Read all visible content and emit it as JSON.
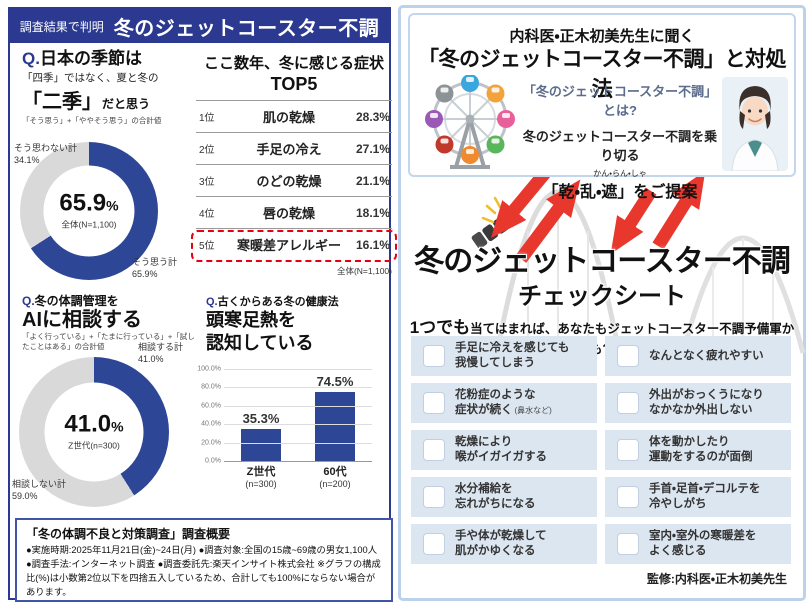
{
  "colors": {
    "header_blue": "#2b3990",
    "chart_blue": "#2e4696",
    "chart_gray": "#d9d9d9",
    "highlight_red": "#e60012",
    "arrow_red": "#e8382d",
    "checkbox_bg": "#dce6f1",
    "panel_border": "#bcd2ea"
  },
  "left_panel": {
    "header": {
      "badge": "調査結果で判明",
      "title": "冬のジェットコースター不調"
    },
    "q_season": {
      "q": "Q.",
      "title": "日本の季節は",
      "line2": "「四季」ではなく、夏と冬の",
      "big": "「二季」",
      "big_suffix": "だと思う",
      "note": "「そう思う」+「ややそう思う」の合計値",
      "donut_center_value": "65.9",
      "donut_center_unit": "%",
      "donut_center_sub": "全体(N=1,100)",
      "label_negative": "そう思わない計\n34.1%",
      "label_positive": "そう思う計\n65.9%"
    },
    "top5": {
      "title": "ここ数年、冬に感じる症状",
      "subtitle": "TOP5",
      "rows": [
        {
          "rank": "1位",
          "label": "肌の乾燥",
          "value": "28.3%"
        },
        {
          "rank": "2位",
          "label": "手足の冷え",
          "value": "27.1%"
        },
        {
          "rank": "3位",
          "label": "のどの乾燥",
          "value": "21.1%"
        },
        {
          "rank": "4位",
          "label": "唇の乾燥",
          "value": "18.1%"
        },
        {
          "rank": "5位",
          "label": "寒暖差アレルギー",
          "value": "16.1%",
          "highlight": true
        }
      ],
      "footnote": "全体(N=1,100)"
    },
    "q_ai": {
      "q": "Q.",
      "title_small": "冬の体調管理を",
      "title": "AIに相談する",
      "note": "「よく行っている」+「たまに行っている」+「試したことはある」の合計値",
      "donut_center_value": "41.0",
      "donut_center_unit": "%",
      "donut_center_sub": "Z世代(n=300)",
      "label_positive": "相談する計\n41.0%",
      "label_negative": "相談しない計\n59.0%"
    },
    "q_health": {
      "q": "Q.",
      "q_line": "古くからある冬の健康法",
      "title1": "頭寒足熱を",
      "title2": "認知している"
    },
    "overview": {
      "title": "「冬の体調不良と対策調査」調査概要",
      "body": "●実施時期:2025年11月21日(金)~24日(月) ●調査対象:全国の15歳~69歳の男女1,100人 ●調査手法:インターネット調査 ●調査委託先:楽天インサイト株式会社 ※グラフの構成比(%)は小数第2位以下を四捨五入しているため、合計しても100%にならない場合があります。"
    }
  },
  "right_panel": {
    "heading_small": "内科医・正木初美先生に聞く",
    "heading_large": "「冬のジェットコースター不調」と対処法",
    "intro_line1": "「冬のジェットコースター不調」とは?",
    "intro_line2": "冬のジェットコースター不調を乗り切る",
    "furigana": "かん・らん・しゃ",
    "intro_line3": "「乾・乱・遮」をご提案",
    "main_title": "冬のジェットコースター不調",
    "main_subtitle": "チェックシート",
    "lead_strong": "1つでも",
    "lead_rest": "当てはまれば、あなたもジェットコースター不調予備軍かも?!",
    "checklist_left": [
      {
        "text": "手足に冷えを感じても\n我慢してしまう"
      },
      {
        "text": "花粉症のような\n症状が続く",
        "note": "(鼻水など)"
      },
      {
        "text": "乾燥により\n喉がイガイガする"
      },
      {
        "text": "水分補給を\n忘れがちになる"
      },
      {
        "text": "手や体が乾燥して\n肌がかゆくなる"
      }
    ],
    "checklist_right": [
      {
        "text": "なんとなく疲れやすい"
      },
      {
        "text": "外出がおっくうになり\nなかなか外出しない"
      },
      {
        "text": "体を動かしたり\n運動をするのが面倒"
      },
      {
        "text": "手首・足首・デコルテを\n冷やしがち"
      },
      {
        "text": "室内・室外の寒暖差を\nよく感じる"
      }
    ],
    "supervisor": "監修:内科医・正木初美先生"
  },
  "chart_data": [
    {
      "type": "pie",
      "title": "日本の季節は「四季」ではなく、夏と冬の「二季」だと思う",
      "labels": [
        "そう思う計",
        "そう思わない計"
      ],
      "values": [
        65.9,
        34.1
      ],
      "center_label": "65.9%",
      "sample": "全体(N=1,100)",
      "colors": [
        "#2e4696",
        "#d9d9d9"
      ]
    },
    {
      "type": "table",
      "title": "ここ数年、冬に感じる症状TOP5",
      "columns": [
        "順位",
        "症状",
        "割合"
      ],
      "rows": [
        [
          "1位",
          "肌の乾燥",
          "28.3%"
        ],
        [
          "2位",
          "手足の冷え",
          "27.1%"
        ],
        [
          "3位",
          "のどの乾燥",
          "21.1%"
        ],
        [
          "4位",
          "唇の乾燥",
          "18.1%"
        ],
        [
          "5位",
          "寒暖差アレルギー",
          "16.1%"
        ]
      ],
      "highlighted_row": "5位 寒暖差アレルギー 16.1%",
      "sample": "全体(N=1,100)"
    },
    {
      "type": "pie",
      "title": "冬の体調管理をAIに相談する",
      "labels": [
        "相談する計",
        "相談しない計"
      ],
      "values": [
        41.0,
        59.0
      ],
      "center_label": "41.0%",
      "sample": "Z世代(n=300)",
      "colors": [
        "#2e4696",
        "#d9d9d9"
      ]
    },
    {
      "type": "bar",
      "title": "頭寒足熱を認知している",
      "categories": [
        "Z世代",
        "60代"
      ],
      "samples": [
        "(n=300)",
        "(n=200)"
      ],
      "values": [
        35.3,
        74.5
      ],
      "ylim": [
        0,
        100
      ],
      "yticks": [
        "100.0%",
        "80.0%",
        "60.0%",
        "40.0%",
        "20.0%",
        "0.0%"
      ],
      "bar_color": "#2e4696"
    }
  ]
}
